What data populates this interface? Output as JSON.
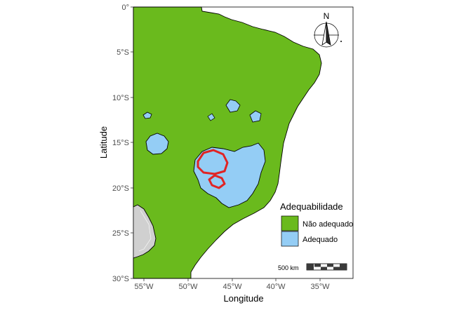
{
  "axes": {
    "xlabel": "Longitude",
    "ylabel": "Latitude",
    "x_ticks": [
      "55°W",
      "50°W",
      "45°W",
      "40°W",
      "35°W"
    ],
    "y_ticks": [
      "0°",
      "5°S",
      "10°S",
      "15°S",
      "20°S",
      "25°S",
      "30°S"
    ]
  },
  "legend": {
    "title": "Adequabilidade",
    "items": [
      {
        "label": "Não adequado",
        "color": "#6aba1d"
      },
      {
        "label": "Adequado",
        "color": "#94cdf5"
      }
    ]
  },
  "north_arrow": {
    "label": "N",
    "icon": "north-arrow-icon"
  },
  "scale_bar": {
    "label": "500 km"
  },
  "colors": {
    "not_suitable": "#6aba1d",
    "suitable": "#94cdf5",
    "highlight_outline": "#e02424",
    "neighbor_land": "#d0d0d0"
  },
  "chart_data": {
    "type": "map",
    "xlabel": "Longitude",
    "ylabel": "Latitude",
    "xlim": [
      -56.5,
      -31.5
    ],
    "ylim": [
      -30,
      0
    ],
    "categories": [
      "Não adequado",
      "Adequado"
    ],
    "grid": false,
    "legend_position": "bottom-right"
  }
}
